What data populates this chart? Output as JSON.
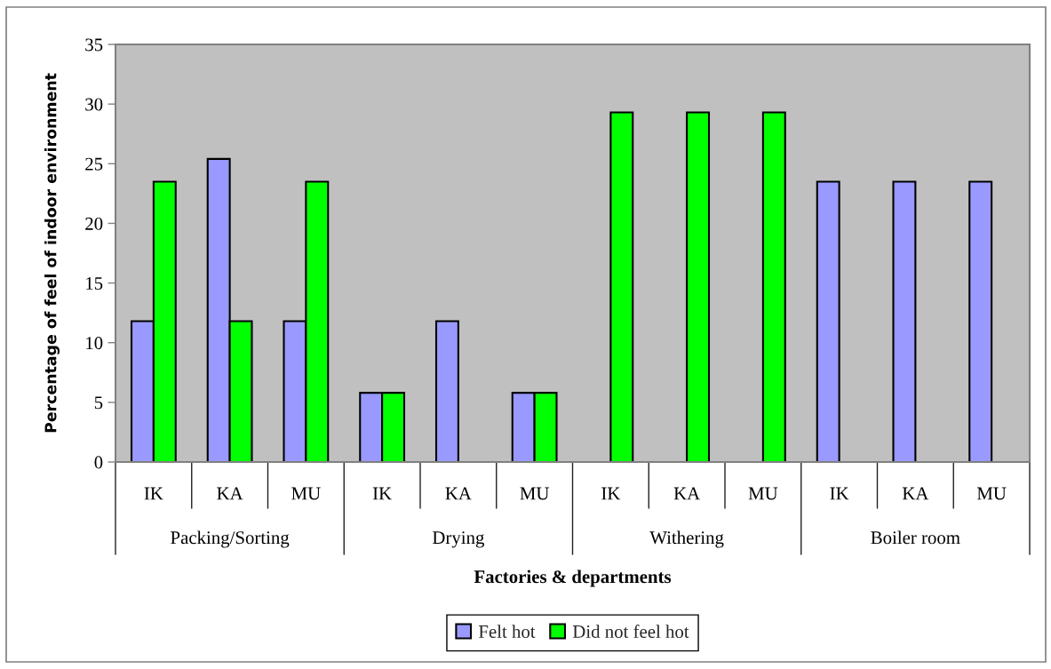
{
  "chart_data": {
    "type": "bar",
    "xlabel": "Factories & departments",
    "ylabel": "Percentage of feel of indoor environment",
    "categories": [
      "IK",
      "KA",
      "MU",
      "IK",
      "KA",
      "MU",
      "IK",
      "KA",
      "MU",
      "IK",
      "KA",
      "MU"
    ],
    "annotations": [
      "Packing/Sorting",
      "Drying",
      "Withering",
      "Boiler room"
    ],
    "series": [
      {
        "name": "Felt hot",
        "color": "#9999ff",
        "values": [
          11.8,
          25.4,
          11.8,
          5.8,
          11.8,
          5.8,
          null,
          null,
          null,
          23.5,
          23.5,
          23.5
        ]
      },
      {
        "name": "Did not feel hot",
        "color": "#00ff00",
        "values": [
          23.5,
          11.8,
          23.5,
          5.8,
          null,
          5.8,
          29.3,
          29.3,
          29.3,
          null,
          null,
          null
        ]
      }
    ],
    "ylim": [
      0,
      35
    ],
    "yticks": [
      0,
      5,
      10,
      15,
      20,
      25,
      30,
      35
    ],
    "legend": "bottom"
  }
}
